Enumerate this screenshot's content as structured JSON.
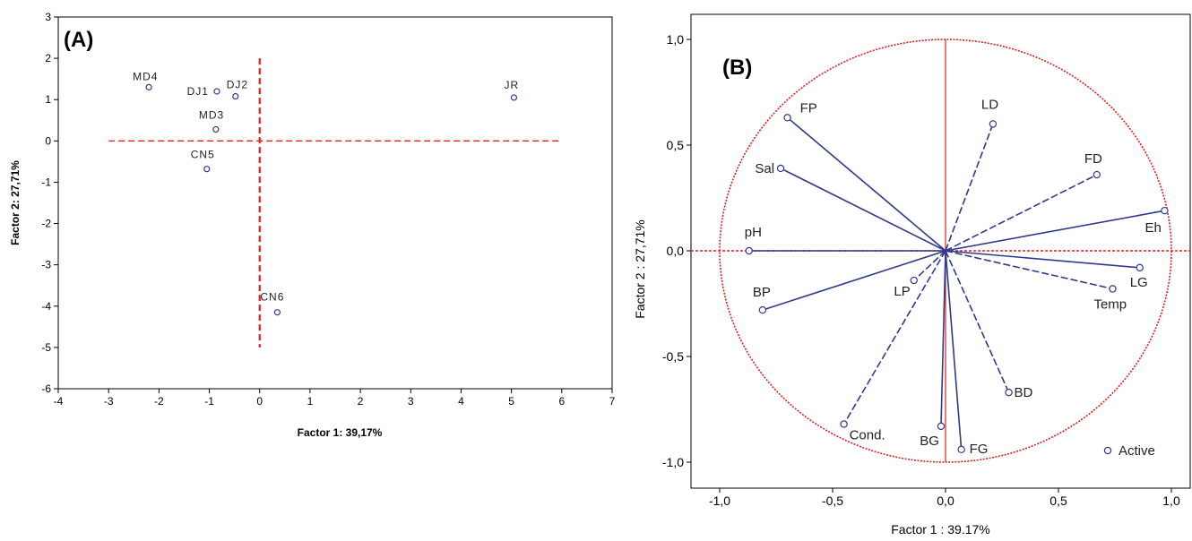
{
  "colors": {
    "red": "#e0201f",
    "navy": "#2e3a8c",
    "frame": "#000000"
  },
  "chart_data": [
    {
      "type": "scatter",
      "panel_label": "(A)",
      "xlabel": "Factor 1: 39,17%",
      "ylabel": "Factor 2: 27,71%",
      "xlim": [
        -4,
        7
      ],
      "ylim": [
        -6,
        3
      ],
      "x_ticks": [
        "-4",
        "-3",
        "-2",
        "-1",
        "0",
        "1",
        "2",
        "3",
        "4",
        "5",
        "6",
        "7"
      ],
      "y_ticks": [
        "3",
        "2",
        "1",
        "0",
        "-1",
        "-2",
        "-3",
        "-4",
        "-5",
        "-6"
      ],
      "reference_lines": {
        "horizontal_y": 0,
        "horizontal_x_range": [
          -3,
          6
        ],
        "vertical_x": 0,
        "vertical_y_range": [
          -5,
          2
        ],
        "style": "dashed"
      },
      "points": [
        {
          "label": "MD4",
          "x": -2.2,
          "y": 1.3
        },
        {
          "label": "DJ1",
          "x": -0.85,
          "y": 1.2
        },
        {
          "label": "DJ2",
          "x": -0.48,
          "y": 1.08
        },
        {
          "label": "MD3",
          "x": -0.87,
          "y": 0.28
        },
        {
          "label": "CN5",
          "x": -1.05,
          "y": -0.68
        },
        {
          "label": "JR",
          "x": 5.05,
          "y": 1.05
        },
        {
          "label": "CN6",
          "x": 0.35,
          "y": -4.15
        }
      ]
    },
    {
      "type": "scatter",
      "subtype": "correlation circle",
      "panel_label": "(B)",
      "xlabel": "Factor 1 : 39.17%",
      "ylabel": "Factor 2 : 27,71%",
      "xlim": [
        -1.12,
        1.12
      ],
      "ylim": [
        -1.12,
        1.12
      ],
      "x_ticks": [
        "-1,0",
        "-0,5",
        "0,0",
        "0,5",
        "1,0"
      ],
      "y_ticks": [
        "1,0",
        "0,5",
        "0,0",
        "-0,5",
        "-1,0"
      ],
      "legend": {
        "label": "Active",
        "position": "bottom-right"
      },
      "variables": [
        {
          "label": "FP",
          "x": -0.7,
          "y": 0.63,
          "line": "solid"
        },
        {
          "label": "Sal",
          "x": -0.73,
          "y": 0.39,
          "line": "solid"
        },
        {
          "label": "pH",
          "x": -0.87,
          "y": 0.0,
          "line": "solid"
        },
        {
          "label": "BP",
          "x": -0.81,
          "y": -0.28,
          "line": "solid"
        },
        {
          "label": "LP",
          "x": -0.14,
          "y": -0.14,
          "line": "dashed"
        },
        {
          "label": "Cond.",
          "x": -0.45,
          "y": -0.82,
          "line": "dashed"
        },
        {
          "label": "BG",
          "x": -0.02,
          "y": -0.83,
          "line": "solid"
        },
        {
          "label": "FG",
          "x": 0.07,
          "y": -0.94,
          "line": "solid"
        },
        {
          "label": "BD",
          "x": 0.28,
          "y": -0.67,
          "line": "dashed"
        },
        {
          "label": "LD",
          "x": 0.21,
          "y": 0.6,
          "line": "dashed"
        },
        {
          "label": "FD",
          "x": 0.67,
          "y": 0.36,
          "line": "dashed"
        },
        {
          "label": "Eh",
          "x": 0.97,
          "y": 0.19,
          "line": "solid"
        },
        {
          "label": "LG",
          "x": 0.86,
          "y": -0.08,
          "line": "solid"
        },
        {
          "label": "Temp",
          "x": 0.74,
          "y": -0.18,
          "line": "dashed"
        }
      ]
    }
  ]
}
